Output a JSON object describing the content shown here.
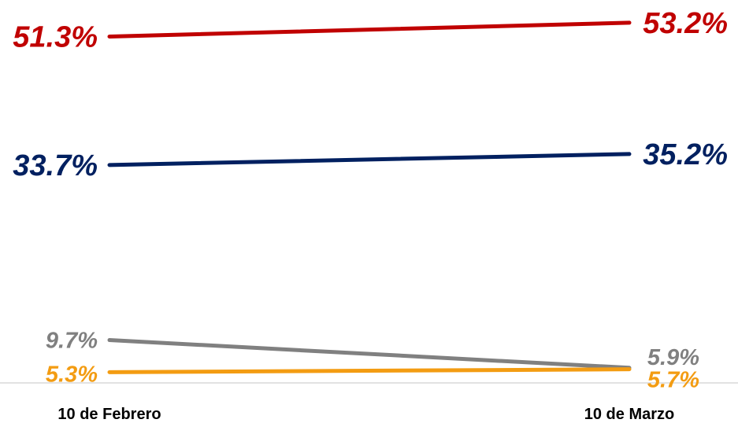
{
  "chart_data": {
    "type": "line",
    "categories": [
      "10 de Febrero",
      "10 de Marzo"
    ],
    "series": [
      {
        "values": [
          51.3,
          53.2
        ],
        "labels": [
          "51.3%",
          "53.2%"
        ],
        "color": "#C00000"
      },
      {
        "values": [
          33.7,
          35.2
        ],
        "labels": [
          "33.7%",
          "35.2%"
        ],
        "color": "#002060"
      },
      {
        "values": [
          9.7,
          5.9
        ],
        "labels": [
          "9.7%",
          "5.9%"
        ],
        "color": "#808080"
      },
      {
        "values": [
          5.3,
          5.7
        ],
        "labels": [
          "5.3%",
          "5.7%"
        ],
        "color": "#F39C12"
      }
    ],
    "ylim": [
      0,
      60
    ],
    "grid": false,
    "legend": "none"
  }
}
